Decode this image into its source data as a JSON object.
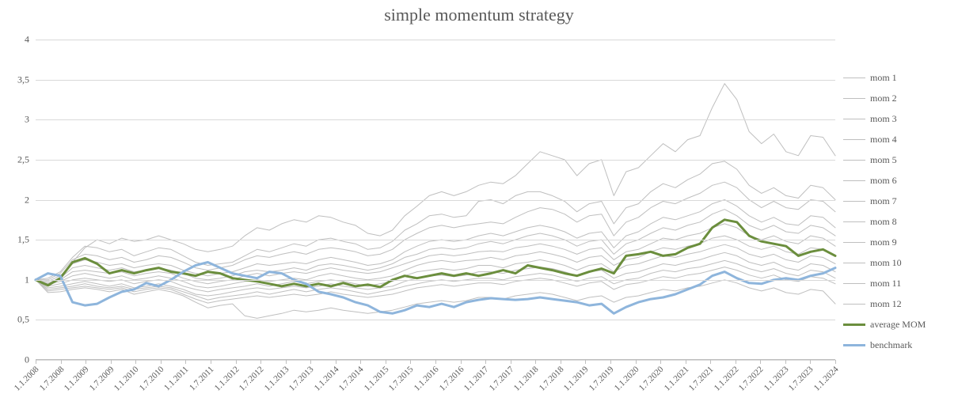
{
  "chart": {
    "type": "line",
    "title": "simple momentum strategy",
    "title_fontsize": 22,
    "title_color": "#595959",
    "font_family": "Times New Roman",
    "background_color": "#ffffff",
    "grid_color": "#d9d9d9",
    "axis_color": "#bfbfbf",
    "tick_label_color": "#595959",
    "tick_label_fontsize": 12,
    "xtick_label_fontsize": 11,
    "ylim": [
      0,
      4
    ],
    "ytick_step": 0.5,
    "ytick_labels": [
      "0",
      "0,5",
      "1",
      "1,5",
      "2",
      "2,5",
      "3",
      "3,5",
      "4"
    ],
    "xtick_rotation_deg": -45,
    "x_categories": [
      "1.1.2008",
      "1.7.2008",
      "1.1.2009",
      "1.7.2009",
      "1.1.2010",
      "1.7.2010",
      "1.1.2011",
      "1.7.2011",
      "1.1.2012",
      "1.7.2012",
      "1.1.2013",
      "1.7.2013",
      "1.1.2014",
      "1.7.2014",
      "1.1.2015",
      "1.7.2015",
      "1.1.2016",
      "1.7.2016",
      "1.1.2017",
      "1.7.2017",
      "1.1.2018",
      "1.7.2018",
      "1.1.2019",
      "1.7.2019",
      "1.1.2020",
      "1.7.2020",
      "1.1.2021",
      "1.7.2021",
      "1.1.2022",
      "1.7.2022",
      "1.1.2023",
      "1.7.2023",
      "1.1.2024"
    ],
    "n_points": 66,
    "legend": {
      "position": "right",
      "fontsize": 12
    },
    "series": [
      {
        "name": "mom 1",
        "color": "#bfbfbf",
        "width": 1,
        "values": [
          1.0,
          0.95,
          1.02,
          1.22,
          1.4,
          1.5,
          1.45,
          1.52,
          1.48,
          1.5,
          1.55,
          1.5,
          1.45,
          1.38,
          1.35,
          1.38,
          1.42,
          1.55,
          1.65,
          1.62,
          1.7,
          1.75,
          1.72,
          1.8,
          1.78,
          1.72,
          1.68,
          1.58,
          1.55,
          1.62,
          1.8,
          1.92,
          2.05,
          2.1,
          2.05,
          2.1,
          2.18,
          2.22,
          2.2,
          2.3,
          2.45,
          2.6,
          2.55,
          2.5,
          2.3,
          2.45,
          2.5,
          2.05,
          2.35,
          2.4,
          2.55,
          2.7,
          2.6,
          2.75,
          2.8,
          3.15,
          3.45,
          3.25,
          2.85,
          2.7,
          2.82,
          2.6,
          2.55,
          2.8,
          2.78,
          2.55
        ]
      },
      {
        "name": "mom 2",
        "color": "#bfbfbf",
        "width": 1,
        "values": [
          1.0,
          1.02,
          1.1,
          1.28,
          1.42,
          1.4,
          1.35,
          1.38,
          1.3,
          1.35,
          1.4,
          1.38,
          1.3,
          1.22,
          1.18,
          1.2,
          1.22,
          1.3,
          1.38,
          1.35,
          1.4,
          1.45,
          1.42,
          1.5,
          1.52,
          1.48,
          1.45,
          1.38,
          1.4,
          1.48,
          1.62,
          1.7,
          1.8,
          1.82,
          1.78,
          1.8,
          1.98,
          2.0,
          1.95,
          2.05,
          2.1,
          2.1,
          2.05,
          1.98,
          1.85,
          1.95,
          1.98,
          1.7,
          1.9,
          1.95,
          2.1,
          2.2,
          2.15,
          2.25,
          2.32,
          2.45,
          2.48,
          2.38,
          2.18,
          2.08,
          2.15,
          2.05,
          2.02,
          2.18,
          2.15,
          2.0
        ]
      },
      {
        "name": "mom 3",
        "color": "#bfbfbf",
        "width": 1,
        "values": [
          1.0,
          1.0,
          1.08,
          1.25,
          1.32,
          1.3,
          1.25,
          1.28,
          1.22,
          1.25,
          1.3,
          1.28,
          1.22,
          1.15,
          1.12,
          1.15,
          1.18,
          1.25,
          1.3,
          1.28,
          1.32,
          1.35,
          1.32,
          1.38,
          1.4,
          1.38,
          1.35,
          1.3,
          1.32,
          1.38,
          1.5,
          1.58,
          1.65,
          1.68,
          1.65,
          1.68,
          1.7,
          1.72,
          1.7,
          1.78,
          1.85,
          1.9,
          1.88,
          1.82,
          1.72,
          1.8,
          1.82,
          1.55,
          1.72,
          1.78,
          1.9,
          1.98,
          1.95,
          2.02,
          2.08,
          2.18,
          2.22,
          2.15,
          2.0,
          1.9,
          1.98,
          1.9,
          1.88,
          2.0,
          1.98,
          1.85
        ]
      },
      {
        "name": "mom 4",
        "color": "#bfbfbf",
        "width": 1,
        "values": [
          1.0,
          0.98,
          1.05,
          1.2,
          1.25,
          1.22,
          1.18,
          1.2,
          1.15,
          1.18,
          1.2,
          1.18,
          1.12,
          1.08,
          1.05,
          1.08,
          1.1,
          1.15,
          1.2,
          1.18,
          1.2,
          1.22,
          1.2,
          1.25,
          1.28,
          1.25,
          1.22,
          1.18,
          1.2,
          1.25,
          1.35,
          1.42,
          1.48,
          1.5,
          1.48,
          1.5,
          1.55,
          1.58,
          1.55,
          1.6,
          1.65,
          1.68,
          1.65,
          1.6,
          1.52,
          1.58,
          1.6,
          1.4,
          1.55,
          1.6,
          1.7,
          1.78,
          1.75,
          1.8,
          1.85,
          1.95,
          2.0,
          1.92,
          1.8,
          1.72,
          1.78,
          1.7,
          1.68,
          1.8,
          1.78,
          1.65
        ]
      },
      {
        "name": "mom 5",
        "color": "#bfbfbf",
        "width": 1,
        "values": [
          1.0,
          0.96,
          1.02,
          1.15,
          1.18,
          1.15,
          1.12,
          1.15,
          1.1,
          1.12,
          1.15,
          1.12,
          1.08,
          1.02,
          1.0,
          1.02,
          1.05,
          1.1,
          1.12,
          1.1,
          1.12,
          1.15,
          1.12,
          1.18,
          1.2,
          1.18,
          1.15,
          1.12,
          1.15,
          1.2,
          1.28,
          1.32,
          1.38,
          1.4,
          1.38,
          1.4,
          1.45,
          1.48,
          1.45,
          1.5,
          1.55,
          1.58,
          1.55,
          1.5,
          1.42,
          1.48,
          1.5,
          1.32,
          1.45,
          1.5,
          1.58,
          1.65,
          1.62,
          1.68,
          1.72,
          1.82,
          1.88,
          1.8,
          1.68,
          1.62,
          1.68,
          1.6,
          1.58,
          1.68,
          1.65,
          1.55
        ]
      },
      {
        "name": "mom 6",
        "color": "#bfbfbf",
        "width": 1,
        "values": [
          1.0,
          0.95,
          1.0,
          1.1,
          1.12,
          1.1,
          1.08,
          1.1,
          1.05,
          1.08,
          1.1,
          1.08,
          1.02,
          0.98,
          0.95,
          0.98,
          1.0,
          1.05,
          1.08,
          1.05,
          1.08,
          1.1,
          1.08,
          1.12,
          1.15,
          1.12,
          1.1,
          1.08,
          1.1,
          1.15,
          1.2,
          1.25,
          1.3,
          1.32,
          1.3,
          1.32,
          1.35,
          1.36,
          1.35,
          1.4,
          1.42,
          1.45,
          1.42,
          1.38,
          1.32,
          1.38,
          1.4,
          1.25,
          1.35,
          1.38,
          1.45,
          1.52,
          1.5,
          1.55,
          1.58,
          1.65,
          1.7,
          1.65,
          1.55,
          1.5,
          1.55,
          1.48,
          1.45,
          1.55,
          1.52,
          1.42
        ]
      },
      {
        "name": "mom 7",
        "color": "#bfbfbf",
        "width": 1,
        "values": [
          1.0,
          0.94,
          0.98,
          1.05,
          1.08,
          1.05,
          1.02,
          1.05,
          1.0,
          1.02,
          1.05,
          1.02,
          0.98,
          0.92,
          0.9,
          0.92,
          0.95,
          0.98,
          1.0,
          0.98,
          1.0,
          1.02,
          1.0,
          1.05,
          1.08,
          1.05,
          1.02,
          1.0,
          1.02,
          1.05,
          1.12,
          1.18,
          1.22,
          1.24,
          1.22,
          1.24,
          1.25,
          1.28,
          1.25,
          1.3,
          1.32,
          1.35,
          1.32,
          1.28,
          1.22,
          1.28,
          1.3,
          1.18,
          1.25,
          1.28,
          1.35,
          1.4,
          1.38,
          1.42,
          1.45,
          1.52,
          1.55,
          1.5,
          1.42,
          1.38,
          1.42,
          1.35,
          1.32,
          1.4,
          1.38,
          1.3
        ]
      },
      {
        "name": "mom 8",
        "color": "#bfbfbf",
        "width": 1,
        "values": [
          1.0,
          0.92,
          0.95,
          1.0,
          1.02,
          1.0,
          0.98,
          1.0,
          0.95,
          0.98,
          1.0,
          0.98,
          0.92,
          0.88,
          0.85,
          0.88,
          0.9,
          0.92,
          0.95,
          0.92,
          0.95,
          0.98,
          0.95,
          0.98,
          1.0,
          0.98,
          0.95,
          0.92,
          0.95,
          0.98,
          1.05,
          1.1,
          1.12,
          1.14,
          1.12,
          1.14,
          1.18,
          1.18,
          1.15,
          1.2,
          1.22,
          1.25,
          1.22,
          1.18,
          1.12,
          1.18,
          1.2,
          1.1,
          1.18,
          1.2,
          1.25,
          1.3,
          1.28,
          1.32,
          1.35,
          1.4,
          1.44,
          1.4,
          1.32,
          1.28,
          1.32,
          1.25,
          1.22,
          1.3,
          1.28,
          1.2
        ]
      },
      {
        "name": "mom 9",
        "color": "#bfbfbf",
        "width": 1,
        "values": [
          1.0,
          0.9,
          0.92,
          0.95,
          0.98,
          0.95,
          0.92,
          0.95,
          0.9,
          0.92,
          0.95,
          0.92,
          0.88,
          0.82,
          0.8,
          0.82,
          0.85,
          0.88,
          0.9,
          0.88,
          0.9,
          0.92,
          0.9,
          0.92,
          0.95,
          0.92,
          0.9,
          0.88,
          0.9,
          0.92,
          0.98,
          1.02,
          1.05,
          1.06,
          1.04,
          1.06,
          1.1,
          1.1,
          1.08,
          1.12,
          1.14,
          1.16,
          1.14,
          1.1,
          1.05,
          1.1,
          1.12,
          1.02,
          1.08,
          1.1,
          1.15,
          1.2,
          1.18,
          1.22,
          1.25,
          1.3,
          1.34,
          1.3,
          1.22,
          1.18,
          1.22,
          1.15,
          1.12,
          1.2,
          1.18,
          1.1
        ]
      },
      {
        "name": "mom 10",
        "color": "#bfbfbf",
        "width": 1,
        "values": [
          1.0,
          0.88,
          0.9,
          0.92,
          0.95,
          0.92,
          0.9,
          0.92,
          0.88,
          0.9,
          0.92,
          0.9,
          0.85,
          0.8,
          0.75,
          0.78,
          0.8,
          0.82,
          0.85,
          0.82,
          0.85,
          0.88,
          0.85,
          0.88,
          0.9,
          0.88,
          0.85,
          0.82,
          0.85,
          0.88,
          0.92,
          0.95,
          0.98,
          1.0,
          0.98,
          1.0,
          1.02,
          1.02,
          1.0,
          1.04,
          1.06,
          1.08,
          1.06,
          1.02,
          0.98,
          1.02,
          1.04,
          0.95,
          1.0,
          1.02,
          1.08,
          1.12,
          1.1,
          1.14,
          1.16,
          1.2,
          1.24,
          1.2,
          1.14,
          1.1,
          1.14,
          1.08,
          1.05,
          1.12,
          1.1,
          1.02
        ]
      },
      {
        "name": "mom 11",
        "color": "#bfbfbf",
        "width": 1,
        "values": [
          1.0,
          0.86,
          0.88,
          0.9,
          0.92,
          0.9,
          0.88,
          0.9,
          0.85,
          0.88,
          0.9,
          0.88,
          0.82,
          0.76,
          0.71,
          0.74,
          0.76,
          0.78,
          0.8,
          0.78,
          0.8,
          0.82,
          0.8,
          0.82,
          0.85,
          0.82,
          0.8,
          0.78,
          0.8,
          0.82,
          0.86,
          0.9,
          0.92,
          0.94,
          0.92,
          0.94,
          0.96,
          0.96,
          0.94,
          0.98,
          1.0,
          1.02,
          1.0,
          0.96,
          0.92,
          0.96,
          0.98,
          0.88,
          0.94,
          0.96,
          1.0,
          1.04,
          1.02,
          1.06,
          1.08,
          1.12,
          1.16,
          1.12,
          1.06,
          1.02,
          1.06,
          1.0,
          0.98,
          1.04,
          1.02,
          0.95
        ]
      },
      {
        "name": "mom 12",
        "color": "#bfbfbf",
        "width": 1,
        "values": [
          1.0,
          0.84,
          0.85,
          0.88,
          0.9,
          0.88,
          0.85,
          0.88,
          0.82,
          0.85,
          0.88,
          0.85,
          0.8,
          0.72,
          0.65,
          0.68,
          0.7,
          0.55,
          0.52,
          0.55,
          0.58,
          0.62,
          0.6,
          0.62,
          0.65,
          0.62,
          0.6,
          0.58,
          0.6,
          0.62,
          0.66,
          0.7,
          0.72,
          0.74,
          0.72,
          0.74,
          0.78,
          0.78,
          0.76,
          0.8,
          0.82,
          0.84,
          0.82,
          0.78,
          0.74,
          0.78,
          0.8,
          0.72,
          0.78,
          0.8,
          0.84,
          0.88,
          0.86,
          0.9,
          0.92,
          0.96,
          1.0,
          0.96,
          0.9,
          0.86,
          0.9,
          0.84,
          0.82,
          0.88,
          0.86,
          0.7
        ]
      },
      {
        "name": "average MOM",
        "color": "#6b8e3d",
        "width": 3,
        "values": [
          1.0,
          0.93,
          1.02,
          1.22,
          1.27,
          1.2,
          1.08,
          1.12,
          1.08,
          1.12,
          1.15,
          1.1,
          1.08,
          1.05,
          1.1,
          1.08,
          1.02,
          1.0,
          0.98,
          0.95,
          0.92,
          0.95,
          0.92,
          0.95,
          0.92,
          0.96,
          0.92,
          0.94,
          0.91,
          1.0,
          1.05,
          1.02,
          1.05,
          1.08,
          1.05,
          1.08,
          1.05,
          1.08,
          1.12,
          1.08,
          1.18,
          1.15,
          1.12,
          1.08,
          1.05,
          1.1,
          1.14,
          1.08,
          1.3,
          1.32,
          1.35,
          1.3,
          1.32,
          1.4,
          1.45,
          1.65,
          1.75,
          1.72,
          1.55,
          1.48,
          1.45,
          1.42,
          1.3,
          1.35,
          1.38,
          1.3
        ]
      },
      {
        "name": "benchmark",
        "color": "#8eb5dc",
        "width": 3,
        "values": [
          1.0,
          1.08,
          1.05,
          0.72,
          0.68,
          0.7,
          0.78,
          0.85,
          0.88,
          0.96,
          0.92,
          1.0,
          1.1,
          1.18,
          1.22,
          1.15,
          1.08,
          1.05,
          1.02,
          1.1,
          1.08,
          1.0,
          0.95,
          0.85,
          0.82,
          0.78,
          0.72,
          0.68,
          0.6,
          0.58,
          0.62,
          0.68,
          0.66,
          0.7,
          0.66,
          0.72,
          0.75,
          0.77,
          0.76,
          0.75,
          0.76,
          0.78,
          0.76,
          0.74,
          0.72,
          0.68,
          0.7,
          0.58,
          0.66,
          0.72,
          0.76,
          0.78,
          0.82,
          0.88,
          0.94,
          1.05,
          1.1,
          1.02,
          0.96,
          0.95,
          1.0,
          1.02,
          1.0,
          1.05,
          1.08,
          1.15
        ]
      }
    ]
  }
}
